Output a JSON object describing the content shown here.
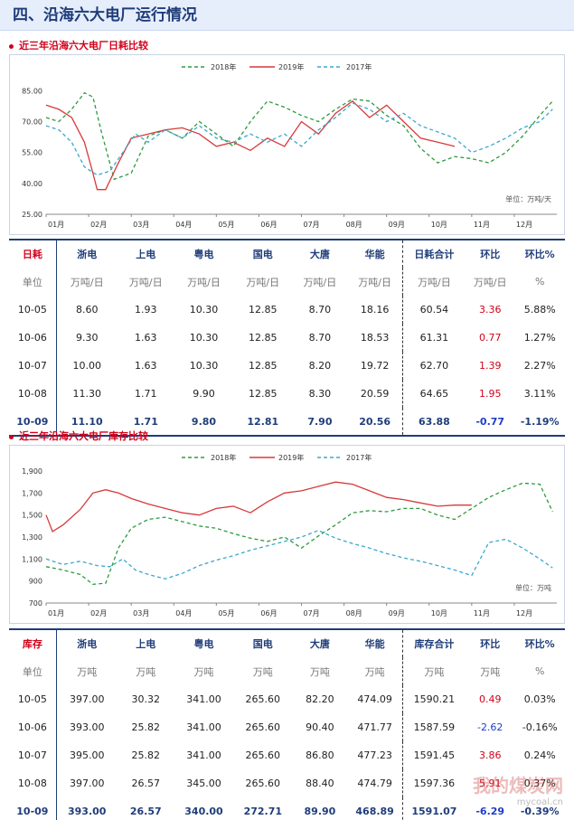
{
  "page": {
    "title": "四、沿海六大电厂运行情况"
  },
  "section1": {
    "title": "近三年沿海六大电厂日耗比较"
  },
  "section2": {
    "title": "近三年沿海六大电厂库存比较"
  },
  "chart_data": [
    {
      "type": "line",
      "unit_label": "单位：万吨/天",
      "ylim": [
        25,
        90
      ],
      "yticks": [
        "85.00",
        "70.00",
        "55.00",
        "40.00",
        "25.00"
      ],
      "ytick_values": [
        85,
        70,
        55,
        40,
        25
      ],
      "xticks": [
        "01月",
        "02月",
        "03月",
        "04月",
        "05月",
        "06月",
        "07月",
        "08月",
        "09月",
        "10月",
        "11月",
        "12月"
      ],
      "legend": [
        "2018年",
        "2019年",
        "2017年"
      ],
      "legend_position": "top",
      "series": [
        {
          "name": "2018年",
          "color": "#2e9a3e",
          "dash": "4,3",
          "x": [
            0,
            0.3,
            0.6,
            0.9,
            1.1,
            1.3,
            1.6,
            2.0,
            2.4,
            2.8,
            3.2,
            3.6,
            4.0,
            4.4,
            4.8,
            5.2,
            5.6,
            6.0,
            6.4,
            6.8,
            7.2,
            7.6,
            8.0,
            8.4,
            8.8,
            9.2,
            9.6,
            10.0,
            10.4,
            10.8,
            11.2,
            11.6,
            11.9
          ],
          "y": [
            72,
            70,
            76,
            84,
            82,
            65,
            42,
            45,
            63,
            66,
            62,
            70,
            64,
            58,
            70,
            80,
            77,
            73,
            70,
            76,
            81,
            80,
            73,
            68,
            57,
            50,
            53,
            52,
            50,
            55,
            63,
            73,
            80
          ]
        },
        {
          "name": "2019年",
          "color": "#d63a3a",
          "dash": "",
          "x": [
            0,
            0.3,
            0.6,
            0.9,
            1.1,
            1.2,
            1.4,
            1.7,
            2.0,
            2.4,
            2.8,
            3.2,
            3.6,
            4.0,
            4.4,
            4.8,
            5.2,
            5.6,
            6.0,
            6.4,
            6.8,
            7.2,
            7.6,
            8.0,
            8.4,
            8.8,
            9.2,
            9.6
          ],
          "y": [
            78,
            76,
            72,
            60,
            45,
            37,
            37,
            50,
            62,
            64,
            66,
            67,
            64,
            58,
            60,
            56,
            62,
            58,
            70,
            64,
            74,
            80,
            72,
            78,
            70,
            62,
            60,
            58
          ]
        },
        {
          "name": "2017年",
          "color": "#3aa8cc",
          "dash": "4,3",
          "x": [
            0,
            0.3,
            0.6,
            0.9,
            1.2,
            1.5,
            1.8,
            2.1,
            2.4,
            2.8,
            3.2,
            3.6,
            4.0,
            4.4,
            4.8,
            5.2,
            5.6,
            6.0,
            6.4,
            6.8,
            7.2,
            7.6,
            8.0,
            8.4,
            8.8,
            9.2,
            9.6,
            10.0,
            10.4,
            10.8,
            11.2,
            11.6,
            11.9
          ],
          "y": [
            68,
            66,
            60,
            48,
            44,
            46,
            55,
            64,
            60,
            66,
            62,
            68,
            62,
            60,
            64,
            60,
            64,
            58,
            66,
            72,
            79,
            76,
            70,
            74,
            68,
            65,
            62,
            55,
            58,
            62,
            67,
            70,
            76
          ]
        }
      ]
    },
    {
      "type": "line",
      "unit_label": "单位：万吨",
      "ylim": [
        700,
        1900
      ],
      "yticks": [
        "1,900",
        "1,700",
        "1,500",
        "1,300",
        "1,100",
        "900",
        "700"
      ],
      "ytick_values": [
        1900,
        1700,
        1500,
        1300,
        1100,
        900,
        700
      ],
      "xticks": [
        "01月",
        "02月",
        "03月",
        "04月",
        "05月",
        "06月",
        "07月",
        "08月",
        "09月",
        "10月",
        "11月",
        "12月"
      ],
      "legend": [
        "2018年",
        "2019年",
        "2017年"
      ],
      "legend_position": "top",
      "series": [
        {
          "name": "2018年",
          "color": "#2e9a3e",
          "dash": "4,3",
          "x": [
            0,
            0.4,
            0.8,
            1.1,
            1.4,
            1.7,
            2.0,
            2.4,
            2.8,
            3.2,
            3.6,
            4.0,
            4.4,
            4.8,
            5.2,
            5.6,
            6.0,
            6.4,
            6.8,
            7.2,
            7.6,
            8.0,
            8.4,
            8.8,
            9.2,
            9.6,
            10.0,
            10.4,
            10.8,
            11.2,
            11.6,
            11.9
          ],
          "y": [
            1030,
            1000,
            960,
            870,
            880,
            1200,
            1380,
            1460,
            1480,
            1440,
            1400,
            1380,
            1330,
            1290,
            1260,
            1300,
            1200,
            1310,
            1410,
            1520,
            1540,
            1530,
            1560,
            1560,
            1500,
            1460,
            1560,
            1660,
            1730,
            1790,
            1780,
            1530
          ]
        },
        {
          "name": "2019年",
          "color": "#d63a3a",
          "dash": "",
          "x": [
            0,
            0.15,
            0.4,
            0.8,
            1.1,
            1.4,
            1.7,
            2.0,
            2.4,
            2.8,
            3.2,
            3.6,
            4.0,
            4.4,
            4.8,
            5.2,
            5.6,
            6.0,
            6.4,
            6.8,
            7.2,
            7.6,
            8.0,
            8.4,
            8.8,
            9.2,
            9.6,
            10.0
          ],
          "y": [
            1500,
            1350,
            1410,
            1550,
            1700,
            1730,
            1700,
            1650,
            1600,
            1560,
            1520,
            1500,
            1560,
            1580,
            1520,
            1620,
            1700,
            1720,
            1760,
            1800,
            1780,
            1720,
            1660,
            1640,
            1610,
            1580,
            1590,
            1590
          ]
        },
        {
          "name": "2017年",
          "color": "#3aa8cc",
          "dash": "4,3",
          "x": [
            0,
            0.4,
            0.8,
            1.2,
            1.5,
            1.8,
            2.1,
            2.4,
            2.8,
            3.2,
            3.6,
            4.0,
            4.4,
            4.8,
            5.2,
            5.6,
            6.0,
            6.4,
            6.8,
            7.2,
            7.6,
            8.0,
            8.4,
            8.8,
            9.2,
            9.6,
            10.0,
            10.4,
            10.8,
            11.2,
            11.6,
            11.9
          ],
          "y": [
            1100,
            1050,
            1080,
            1040,
            1030,
            1100,
            1000,
            960,
            920,
            970,
            1040,
            1090,
            1130,
            1180,
            1220,
            1260,
            1300,
            1360,
            1290,
            1240,
            1200,
            1150,
            1110,
            1080,
            1040,
            1000,
            950,
            1250,
            1280,
            1200,
            1100,
            1020
          ]
        }
      ]
    }
  ],
  "consumption_table": {
    "corner": "日耗",
    "headers": [
      "浙电",
      "上电",
      "粤电",
      "国电",
      "大唐",
      "华能",
      "日耗合计",
      "环比",
      "环比%"
    ],
    "units": [
      "单位",
      "万吨/日",
      "万吨/日",
      "万吨/日",
      "万吨/日",
      "万吨/日",
      "万吨/日",
      "万吨/日",
      "万吨/日",
      "%"
    ],
    "rows": [
      [
        "10-05",
        "8.60",
        "1.93",
        "10.30",
        "12.85",
        "8.70",
        "18.16",
        "60.54",
        "3.36",
        "5.88%"
      ],
      [
        "10-06",
        "9.30",
        "1.63",
        "10.30",
        "12.85",
        "8.70",
        "18.53",
        "61.31",
        "0.77",
        "1.27%"
      ],
      [
        "10-07",
        "10.00",
        "1.63",
        "10.30",
        "12.85",
        "8.20",
        "19.72",
        "62.70",
        "1.39",
        "2.27%"
      ],
      [
        "10-08",
        "11.30",
        "1.71",
        "9.90",
        "12.85",
        "8.30",
        "20.59",
        "64.65",
        "1.95",
        "3.11%"
      ],
      [
        "10-09",
        "11.10",
        "1.71",
        "9.80",
        "12.81",
        "7.90",
        "20.56",
        "63.88",
        "-0.77",
        "-1.19%"
      ]
    ]
  },
  "inventory_table": {
    "corner": "库存",
    "headers": [
      "浙电",
      "上电",
      "粤电",
      "国电",
      "大唐",
      "华能",
      "库存合计",
      "环比",
      "环比%"
    ],
    "units": [
      "单位",
      "万吨",
      "万吨",
      "万吨",
      "万吨",
      "万吨",
      "万吨",
      "万吨",
      "万吨",
      "%"
    ],
    "rows": [
      [
        "10-05",
        "397.00",
        "30.32",
        "341.00",
        "265.60",
        "82.20",
        "474.09",
        "1590.21",
        "0.49",
        "0.03%"
      ],
      [
        "10-06",
        "393.00",
        "25.82",
        "341.00",
        "265.60",
        "90.40",
        "471.77",
        "1587.59",
        "-2.62",
        "-0.16%"
      ],
      [
        "10-07",
        "395.00",
        "25.82",
        "341.00",
        "265.60",
        "86.80",
        "477.23",
        "1591.45",
        "3.86",
        "0.24%"
      ],
      [
        "10-08",
        "397.00",
        "26.57",
        "345.00",
        "265.60",
        "88.40",
        "474.79",
        "1597.36",
        "5.91",
        "0.37%"
      ],
      [
        "10-09",
        "393.00",
        "26.57",
        "340.00",
        "272.71",
        "89.90",
        "468.89",
        "1591.07",
        "-6.29",
        "-0.39%"
      ]
    ]
  },
  "watermark": {
    "text": "我的煤炭网",
    "url": "mycoal.cn"
  }
}
